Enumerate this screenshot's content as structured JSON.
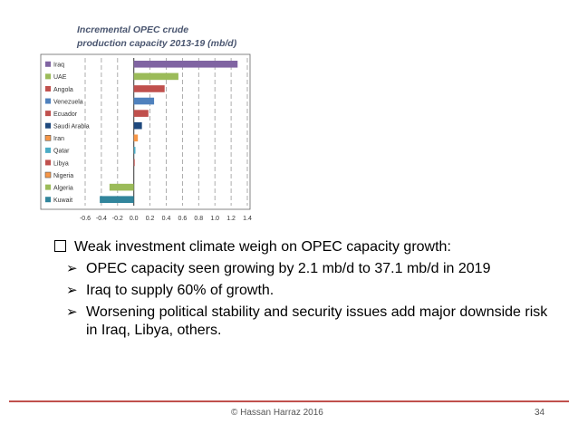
{
  "chart_data": {
    "type": "bar",
    "orientation": "horizontal",
    "title_line1": "Incremental OPEC crude",
    "title_line2": "production capacity 2013-19 (mb/d)",
    "categories": [
      "Iraq",
      "UAE",
      "Angola",
      "Venezuela",
      "Ecuador",
      "Saudi Arabia",
      "Iran",
      "Qatar",
      "Libya",
      "Nigeria",
      "Algeria",
      "Kuwait"
    ],
    "values": [
      1.28,
      0.55,
      0.38,
      0.25,
      0.18,
      0.1,
      0.05,
      0.02,
      0.01,
      0.0,
      -0.3,
      -0.42
    ],
    "colors": [
      "#8064a2",
      "#9bbb59",
      "#c0504d",
      "#4f81bd",
      "#c0504d",
      "#1f497d",
      "#f79646",
      "#4bacc6",
      "#c0504d",
      "#f79646",
      "#9bbb59",
      "#31859c"
    ],
    "xlim": [
      -0.6,
      1.4
    ],
    "xticks": [
      "-0.6",
      "-0.4",
      "-0.2",
      "0.0",
      "0.2",
      "0.4",
      "0.6",
      "0.8",
      "1.0",
      "1.2",
      "1.4"
    ],
    "grid": "vertical-dashed",
    "legend": "left"
  },
  "bullets": {
    "main": "Weak investment climate weigh on OPEC capacity growth:",
    "sub": [
      "OPEC capacity seen growing by 2.1 mb/d to 37.1 mb/d in 2019",
      "Iraq to supply 60% of growth.",
      "Worsening political stability and security issues add major downside risk in Iraq, Libya, others."
    ]
  },
  "footer": {
    "copyright": "© Hassan Harraz 2016",
    "page": "34"
  }
}
